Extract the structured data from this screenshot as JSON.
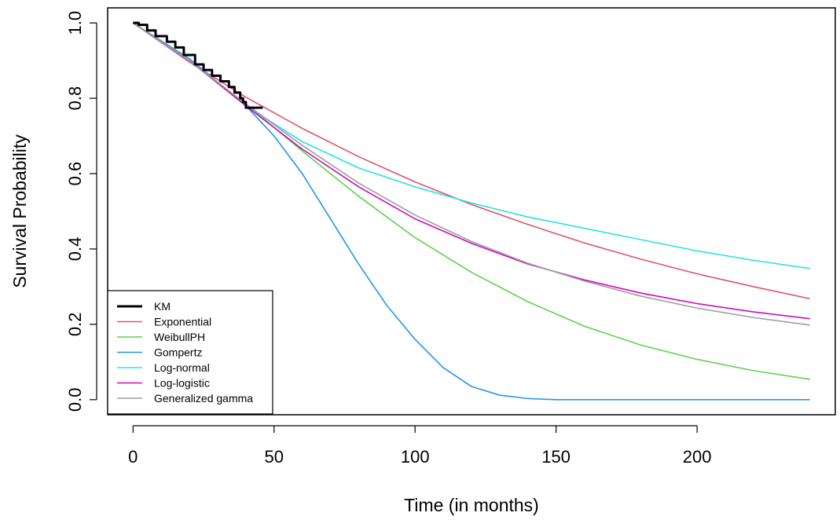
{
  "chart_data": {
    "type": "line",
    "title": "",
    "xlabel": "Time (in months)",
    "ylabel": "Survival Probability",
    "xlim": [
      -9,
      249
    ],
    "ylim": [
      -0.04,
      1.04
    ],
    "xticks": [
      0,
      50,
      100,
      150,
      200
    ],
    "xtick_labels": [
      "0",
      "50",
      "100",
      "150",
      "200"
    ],
    "yticks": [
      0.0,
      0.2,
      0.4,
      0.6,
      0.8,
      1.0
    ],
    "ytick_labels": [
      "0.0",
      "0.2",
      "0.4",
      "0.6",
      "0.8",
      "1.0"
    ],
    "grid": false,
    "legend_position": "bottom-left",
    "series": [
      {
        "name": "KM",
        "color": "#000000",
        "style": "step",
        "x": [
          0,
          2,
          5,
          8,
          12,
          15,
          18,
          22,
          25,
          28,
          31,
          34,
          36,
          38,
          39,
          40,
          42,
          44,
          46
        ],
        "y": [
          1.0,
          0.995,
          0.98,
          0.965,
          0.95,
          0.935,
          0.915,
          0.89,
          0.875,
          0.86,
          0.845,
          0.83,
          0.815,
          0.8,
          0.79,
          0.775,
          0.775,
          0.775,
          0.775
        ]
      },
      {
        "name": "Exponential",
        "color": "#DF536B",
        "x": [
          0,
          20,
          40,
          60,
          80,
          100,
          120,
          140,
          160,
          180,
          200,
          220,
          240
        ],
        "y": [
          1.0,
          0.896,
          0.803,
          0.72,
          0.645,
          0.578,
          0.518,
          0.465,
          0.416,
          0.373,
          0.334,
          0.3,
          0.268
        ]
      },
      {
        "name": "WeibullPH",
        "color": "#61D04F",
        "x": [
          0,
          20,
          40,
          60,
          80,
          100,
          120,
          140,
          160,
          180,
          200,
          220,
          240
        ],
        "y": [
          1.0,
          0.9,
          0.785,
          0.66,
          0.54,
          0.43,
          0.338,
          0.26,
          0.195,
          0.145,
          0.107,
          0.077,
          0.054
        ]
      },
      {
        "name": "Gompertz",
        "color": "#2297E6",
        "x": [
          0,
          20,
          40,
          50,
          60,
          70,
          80,
          90,
          100,
          110,
          120,
          130,
          140,
          150,
          160,
          200,
          240
        ],
        "y": [
          1.0,
          0.905,
          0.78,
          0.7,
          0.6,
          0.48,
          0.36,
          0.25,
          0.16,
          0.085,
          0.035,
          0.012,
          0.003,
          0.0,
          0.0,
          0.0,
          0.0
        ]
      },
      {
        "name": "Log-normal",
        "color": "#28E2E5",
        "x": [
          0,
          20,
          40,
          60,
          80,
          100,
          120,
          140,
          160,
          180,
          200,
          220,
          240
        ],
        "y": [
          1.0,
          0.9,
          0.78,
          0.685,
          0.615,
          0.565,
          0.522,
          0.485,
          0.455,
          0.425,
          0.395,
          0.37,
          0.348
        ]
      },
      {
        "name": "Log-logistic",
        "color": "#CD0BBC",
        "x": [
          0,
          20,
          40,
          60,
          80,
          100,
          120,
          140,
          160,
          180,
          200,
          220,
          240
        ],
        "y": [
          1.0,
          0.9,
          0.78,
          0.665,
          0.565,
          0.48,
          0.415,
          0.36,
          0.318,
          0.283,
          0.255,
          0.233,
          0.215
        ]
      },
      {
        "name": "Generalized gamma",
        "color": "#9E9E9E",
        "x": [
          0,
          20,
          40,
          60,
          80,
          100,
          120,
          140,
          160,
          180,
          200,
          220,
          240
        ],
        "y": [
          1.0,
          0.9,
          0.785,
          0.675,
          0.575,
          0.49,
          0.42,
          0.362,
          0.315,
          0.275,
          0.243,
          0.218,
          0.198
        ]
      }
    ]
  }
}
